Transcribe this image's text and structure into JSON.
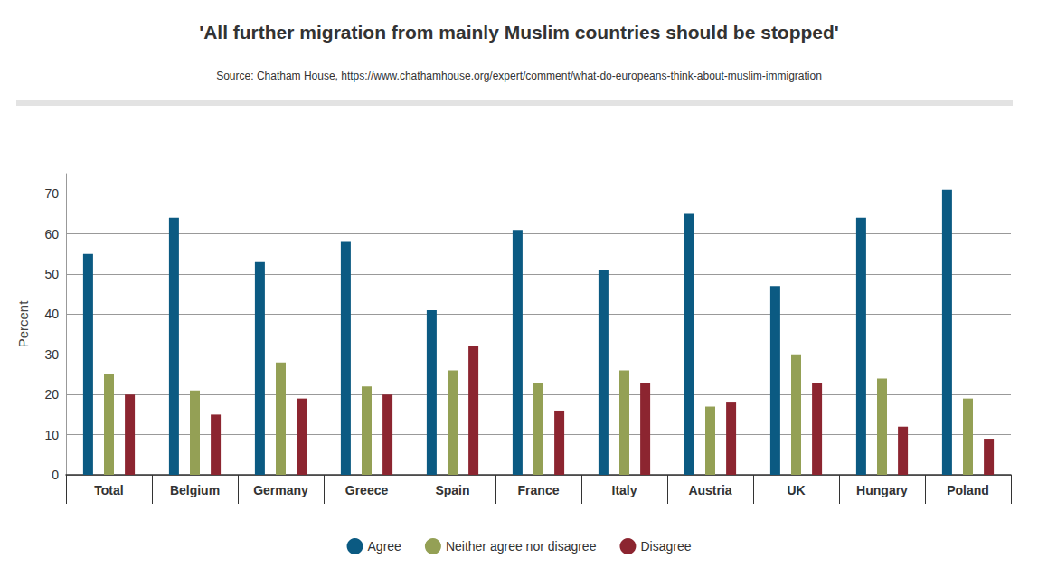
{
  "chart_data": {
    "type": "bar",
    "title": "'All further migration from mainly Muslim countries should be stopped'",
    "subtitle": "Source: Chatham House, https://www.chathamhouse.org/expert/comment/what-do-europeans-think-about-muslim-immigration",
    "y_label": "Percent",
    "categories": [
      "Total",
      "Belgium",
      "Germany",
      "Greece",
      "Spain",
      "France",
      "Italy",
      "Austria",
      "UK",
      "Hungary",
      "Poland"
    ],
    "series": [
      {
        "name": "Agree",
        "color": "#0b5a82",
        "values": [
          55,
          64,
          53,
          58,
          41,
          61,
          51,
          65,
          47,
          64,
          71
        ]
      },
      {
        "name": "Neither agree nor disagree",
        "color": "#94a055",
        "values": [
          25,
          21,
          28,
          22,
          26,
          23,
          26,
          17,
          30,
          24,
          19
        ]
      },
      {
        "name": "Disagree",
        "color": "#8c2530",
        "values": [
          20,
          15,
          19,
          20,
          32,
          16,
          23,
          18,
          23,
          12,
          9
        ]
      }
    ],
    "ylim": [
      0,
      75
    ],
    "yticks": [
      0,
      10,
      20,
      30,
      40,
      50,
      60,
      70
    ],
    "grid": true,
    "legend": "bottom"
  }
}
